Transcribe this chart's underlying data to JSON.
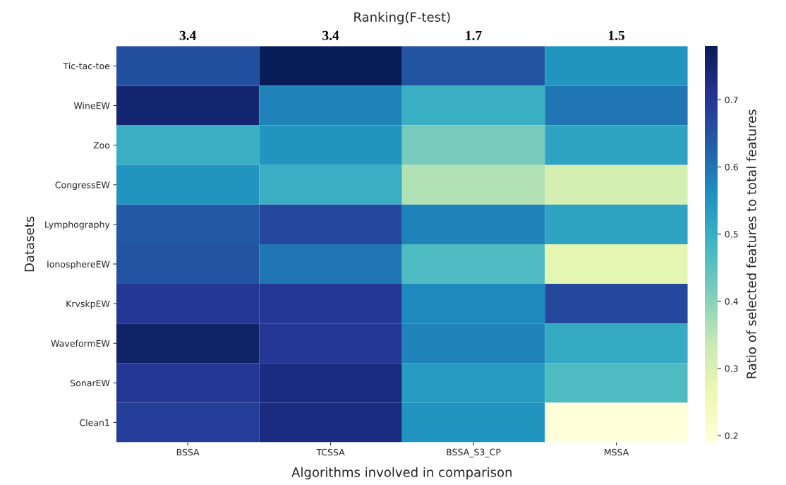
{
  "chart_data": {
    "type": "heatmap",
    "xlabel": "Algorithms involved in comparison",
    "ylabel": "Datasets",
    "x2label": "Ranking(F-test)",
    "clabel": "Ratio of selected features to total features",
    "categories": [
      "BSSA",
      "TCSSA",
      "BSSA_S3_CP",
      "MSSA"
    ],
    "y_categories": [
      "Tic-tac-toe",
      "WineEW",
      "Zoo",
      "CongressEW",
      "Lymphography",
      "IonosphereEW",
      "KrvskpEW",
      "WaveformEW",
      "SonarEW",
      "Clean1"
    ],
    "cells": [
      [
        0.66,
        0.78,
        0.65,
        0.55
      ],
      [
        0.75,
        0.58,
        0.5,
        0.6
      ],
      [
        0.5,
        0.55,
        0.42,
        0.52
      ],
      [
        0.55,
        0.5,
        0.36,
        0.31
      ],
      [
        0.64,
        0.67,
        0.58,
        0.52
      ],
      [
        0.65,
        0.6,
        0.47,
        0.28
      ],
      [
        0.7,
        0.7,
        0.57,
        0.67
      ],
      [
        0.76,
        0.7,
        0.58,
        0.51
      ],
      [
        0.7,
        0.73,
        0.54,
        0.47
      ],
      [
        0.69,
        0.73,
        0.55,
        0.19
      ]
    ],
    "clim": [
      0.19,
      0.78
    ],
    "cticks": [
      0.2,
      0.3,
      0.4,
      0.5,
      0.6,
      0.7
    ],
    "annotations": [
      "3.4",
      "3.4",
      "1.7",
      "1.5"
    ]
  }
}
